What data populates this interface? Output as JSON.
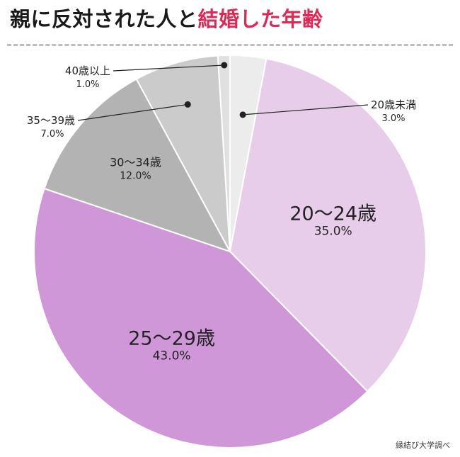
{
  "title": {
    "part1": "親に反対された人と",
    "part2": "結婚した年齢",
    "accent_color": "#d92a58"
  },
  "source": "縁結び大学調べ",
  "chart_data": {
    "type": "pie",
    "title": "親に反対された人と結婚した年齢",
    "start": "top",
    "direction": "clockwise",
    "slices": [
      {
        "label": "20歳未満",
        "value": 3.0,
        "value_label": "3.0%",
        "color": "#ececec"
      },
      {
        "label": "20〜24歳",
        "value": 35.0,
        "value_label": "35.0%",
        "color": "#e8cdea"
      },
      {
        "label": "25〜29歳",
        "value": 43.0,
        "value_label": "43.0%",
        "color": "#cf97d8"
      },
      {
        "label": "30〜34歳",
        "value": 12.0,
        "value_label": "12.0%",
        "color": "#b3b3b3"
      },
      {
        "label": "35〜39歳",
        "value": 7.0,
        "value_label": "7.0%",
        "color": "#cbcbcb"
      },
      {
        "label": "40歳以上",
        "value": 1.0,
        "value_label": "1.0%",
        "color": "#e0e0e0"
      }
    ]
  }
}
